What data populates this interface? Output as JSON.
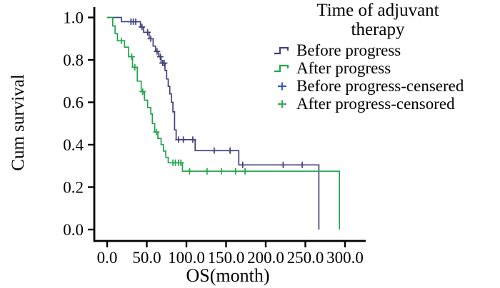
{
  "figure": {
    "background": "#ffffff",
    "axis_color": "#000000"
  },
  "axes": {
    "x": {
      "label": "OS(month)",
      "ticks": [
        "0.0",
        "50.0",
        "100.0",
        "150.0",
        "200.0",
        "250.0",
        "300.0"
      ],
      "tick_values": [
        0,
        50,
        100,
        150,
        200,
        250,
        300
      ],
      "range": [
        0,
        300
      ]
    },
    "y": {
      "label": "Cum survival",
      "ticks": [
        "0.0",
        "0.2",
        "0.4",
        "0.6",
        "0.8",
        "1.0"
      ],
      "tick_values": [
        0,
        0.2,
        0.4,
        0.6,
        0.8,
        1.0
      ],
      "range": [
        0,
        1
      ]
    }
  },
  "legend": {
    "title_line1": "Time of adjuvant",
    "title_line2": "therapy",
    "items": [
      {
        "label": "Before progress",
        "marker": "step-line-icon",
        "color": "#41417e"
      },
      {
        "label": "After progress",
        "marker": "step-line-icon",
        "color": "#21a64d"
      },
      {
        "label": "Before progress-censered",
        "marker": "plus-icon",
        "color": "#3b5cae"
      },
      {
        "label": "After progress-censored",
        "marker": "plus-icon",
        "color": "#3aa95f"
      }
    ]
  },
  "chart_data": {
    "type": "line",
    "subtype": "kaplan-meier-step",
    "title": "",
    "xlabel": "OS(month)",
    "ylabel": "Cum survival",
    "xlim": [
      0,
      300
    ],
    "ylim": [
      0,
      1
    ],
    "grid": false,
    "legend_position": "top-right",
    "series": [
      {
        "id": "before-progress",
        "name": "Before progress",
        "color": "#41417e",
        "steps": [
          [
            0,
            1.0
          ],
          [
            18,
            0.98
          ],
          [
            42,
            0.955
          ],
          [
            46,
            0.93
          ],
          [
            53,
            0.9
          ],
          [
            58,
            0.865
          ],
          [
            61,
            0.84
          ],
          [
            65,
            0.815
          ],
          [
            68,
            0.785
          ],
          [
            73,
            0.75
          ],
          [
            75,
            0.71
          ],
          [
            77,
            0.675
          ],
          [
            79,
            0.64
          ],
          [
            81,
            0.6
          ],
          [
            83,
            0.555
          ],
          [
            85,
            0.47
          ],
          [
            87,
            0.424
          ],
          [
            111,
            0.372
          ],
          [
            166,
            0.305
          ],
          [
            267,
            0.0
          ]
        ],
        "censored": [
          [
            30,
            0.98
          ],
          [
            33,
            0.98
          ],
          [
            36,
            0.98
          ],
          [
            44,
            0.955
          ],
          [
            51,
            0.93
          ],
          [
            55,
            0.9
          ],
          [
            63,
            0.84
          ],
          [
            67,
            0.815
          ],
          [
            70,
            0.785
          ],
          [
            72,
            0.785
          ],
          [
            90,
            0.424
          ],
          [
            96,
            0.424
          ],
          [
            108,
            0.424
          ],
          [
            135,
            0.372
          ],
          [
            155,
            0.372
          ],
          [
            171,
            0.305
          ],
          [
            222,
            0.305
          ],
          [
            246,
            0.305
          ]
        ]
      },
      {
        "id": "after-progress",
        "name": "After progress",
        "color": "#21a64d",
        "steps": [
          [
            0,
            1.0
          ],
          [
            7,
            0.96
          ],
          [
            10,
            0.925
          ],
          [
            13,
            0.89
          ],
          [
            22,
            0.86
          ],
          [
            27,
            0.815
          ],
          [
            32,
            0.765
          ],
          [
            38,
            0.7
          ],
          [
            43,
            0.65
          ],
          [
            47,
            0.61
          ],
          [
            51,
            0.575
          ],
          [
            55,
            0.545
          ],
          [
            57,
            0.5
          ],
          [
            60,
            0.46
          ],
          [
            64,
            0.43
          ],
          [
            68,
            0.4
          ],
          [
            71,
            0.37
          ],
          [
            74,
            0.34
          ],
          [
            77,
            0.315
          ],
          [
            95,
            0.275
          ],
          [
            293,
            0.0
          ]
        ],
        "censored": [
          [
            18,
            0.89
          ],
          [
            31,
            0.815
          ],
          [
            35,
            0.765
          ],
          [
            45,
            0.65
          ],
          [
            62,
            0.46
          ],
          [
            83,
            0.315
          ],
          [
            86,
            0.315
          ],
          [
            90,
            0.315
          ],
          [
            93,
            0.315
          ],
          [
            104,
            0.275
          ],
          [
            126,
            0.275
          ],
          [
            144,
            0.275
          ],
          [
            162,
            0.275
          ],
          [
            174,
            0.275
          ]
        ]
      }
    ]
  }
}
